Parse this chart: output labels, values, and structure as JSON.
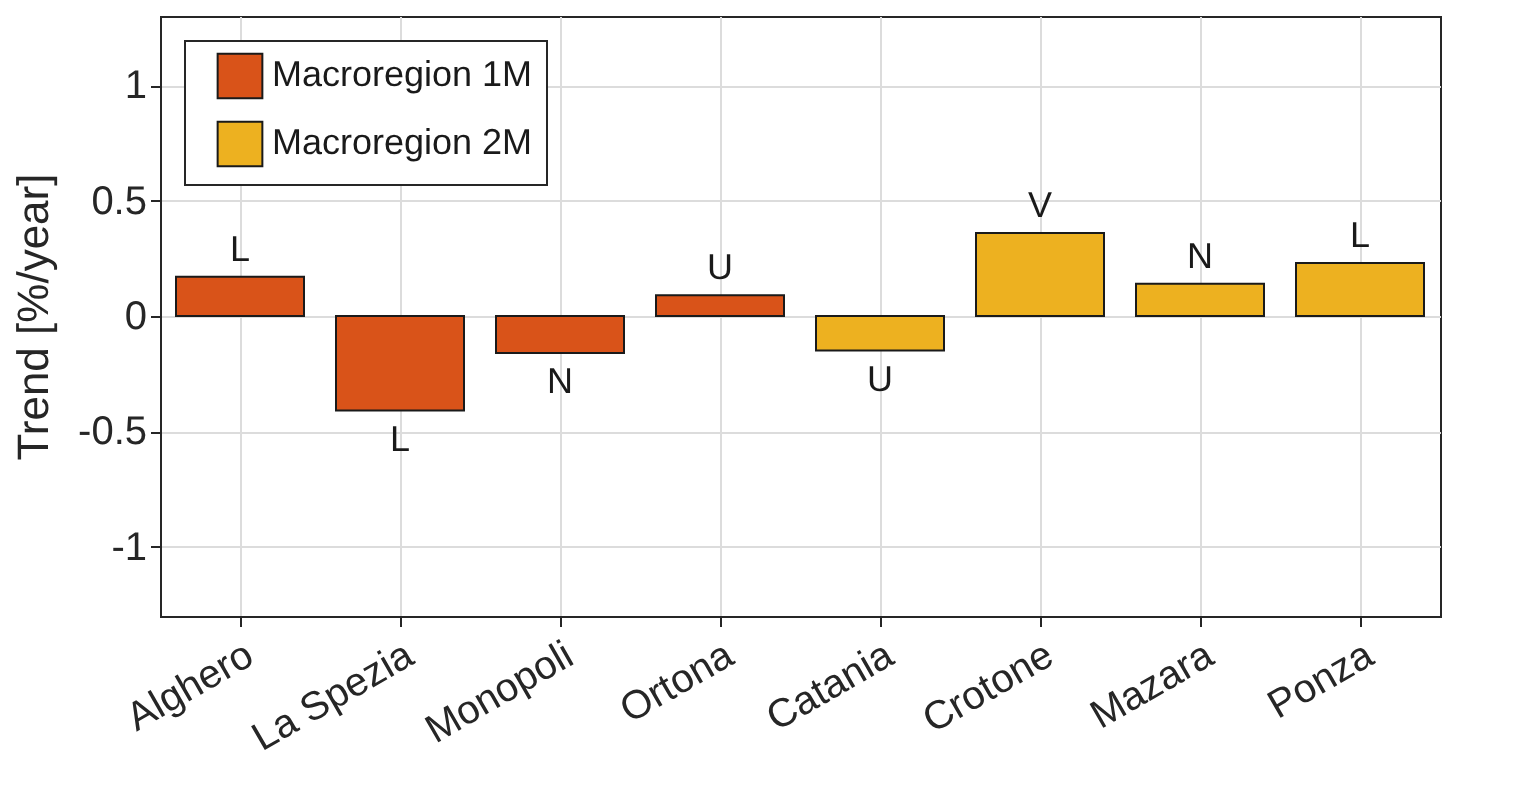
{
  "chart_data": {
    "type": "bar",
    "ylabel": "Trend [%/year]",
    "categories": [
      "Alghero",
      "La Spezia",
      "Monopoli",
      "Ortona",
      "Catania",
      "Crotone",
      "Mazara",
      "Ponza"
    ],
    "series": [
      {
        "name": "Macroregion 1M",
        "color": "#d95319",
        "values": [
          0.17,
          -0.41,
          -0.16,
          0.09,
          null,
          null,
          null,
          null
        ]
      },
      {
        "name": "Macroregion 2M",
        "color": "#edb120",
        "values": [
          null,
          null,
          null,
          null,
          -0.15,
          0.36,
          0.14,
          0.23
        ]
      }
    ],
    "ylim": [
      -1.3,
      1.3
    ],
    "yticks": [
      -1,
      -0.5,
      0,
      0.5,
      1
    ],
    "grid": true,
    "legend": "top left",
    "annotations": [
      {
        "text": "L",
        "x": "Alghero",
        "y": 0.17
      },
      {
        "text": "L",
        "x": "La Spezia",
        "y": -0.41
      },
      {
        "text": "N",
        "x": "Monopoli",
        "y": -0.16
      },
      {
        "text": "U",
        "x": "Ortona",
        "y": 0.09
      },
      {
        "text": "U",
        "x": "Catania",
        "y": -0.15
      },
      {
        "text": "V",
        "x": "Crotone",
        "y": 0.36
      },
      {
        "text": "N",
        "x": "Mazara",
        "y": 0.14
      },
      {
        "text": "L",
        "x": "Ponza",
        "y": 0.23
      }
    ]
  }
}
